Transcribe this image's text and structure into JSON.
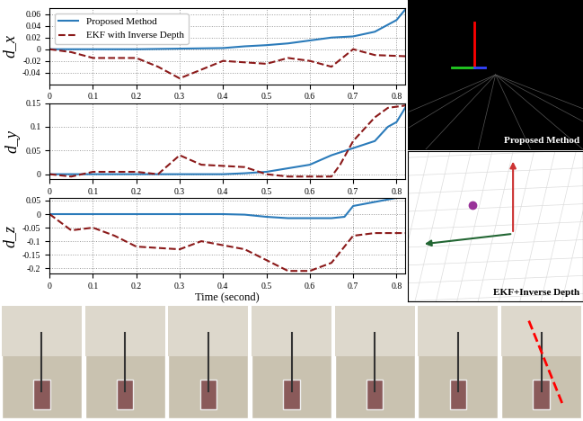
{
  "chart_data": [
    {
      "type": "line",
      "y_label": "d_x",
      "legend": "upper left",
      "grid": true,
      "xlim": [
        0,
        0.82
      ],
      "xticks": [
        0,
        0.1,
        0.2,
        0.3,
        0.4,
        0.5,
        0.6,
        0.7,
        0.8
      ],
      "ylim": [
        -0.06,
        0.07
      ],
      "yticks": [
        -0.04,
        -0.02,
        0,
        0.02,
        0.04,
        0.06
      ],
      "series": [
        {
          "name": "Proposed Method",
          "color": "#2b7bba",
          "line_style": "solid",
          "x": [
            0,
            0.1,
            0.2,
            0.3,
            0.4,
            0.45,
            0.5,
            0.55,
            0.6,
            0.65,
            0.7,
            0.75,
            0.8,
            0.82
          ],
          "values": [
            0,
            0,
            0,
            0.001,
            0.002,
            0.005,
            0.007,
            0.01,
            0.015,
            0.02,
            0.022,
            0.03,
            0.05,
            0.068
          ]
        },
        {
          "name": "EKF with Inverse Depth",
          "color": "#8b1a1a",
          "line_style": "dashed",
          "x": [
            0,
            0.05,
            0.1,
            0.2,
            0.25,
            0.3,
            0.35,
            0.4,
            0.5,
            0.55,
            0.6,
            0.65,
            0.7,
            0.75,
            0.82
          ],
          "values": [
            0,
            -0.005,
            -0.015,
            -0.015,
            -0.03,
            -0.05,
            -0.035,
            -0.02,
            -0.025,
            -0.015,
            -0.02,
            -0.03,
            0,
            -0.01,
            -0.012
          ]
        }
      ]
    },
    {
      "type": "line",
      "y_label": "d_y",
      "grid": true,
      "xlim": [
        0,
        0.82
      ],
      "xticks": [
        0,
        0.1,
        0.2,
        0.3,
        0.4,
        0.5,
        0.6,
        0.7,
        0.8
      ],
      "ylim": [
        -0.01,
        0.15
      ],
      "yticks": [
        0,
        0.05,
        0.1,
        0.15
      ],
      "series": [
        {
          "name": "Proposed Method",
          "color": "#2b7bba",
          "line_style": "solid",
          "x": [
            0,
            0.1,
            0.2,
            0.3,
            0.4,
            0.45,
            0.5,
            0.6,
            0.65,
            0.7,
            0.75,
            0.78,
            0.8,
            0.82
          ],
          "values": [
            0,
            0,
            0,
            0,
            0,
            0.002,
            0.005,
            0.02,
            0.04,
            0.055,
            0.07,
            0.1,
            0.11,
            0.14
          ]
        },
        {
          "name": "EKF with Inverse Depth",
          "color": "#8b1a1a",
          "line_style": "dashed",
          "x": [
            0,
            0.05,
            0.1,
            0.2,
            0.25,
            0.3,
            0.35,
            0.45,
            0.5,
            0.55,
            0.65,
            0.67,
            0.7,
            0.75,
            0.78,
            0.82
          ],
          "values": [
            0,
            -0.005,
            0.005,
            0.005,
            0,
            0.04,
            0.02,
            0.015,
            0,
            -0.005,
            -0.005,
            0.02,
            0.07,
            0.12,
            0.14,
            0.145
          ]
        }
      ]
    },
    {
      "type": "line",
      "y_label": "d_z",
      "x_label": "Time (second)",
      "grid": true,
      "xlim": [
        0,
        0.82
      ],
      "xticks": [
        0,
        0.1,
        0.2,
        0.3,
        0.4,
        0.5,
        0.6,
        0.7,
        0.8
      ],
      "ylim": [
        -0.22,
        0.06
      ],
      "yticks": [
        -0.2,
        -0.15,
        -0.1,
        -0.05,
        0,
        0.05
      ],
      "series": [
        {
          "name": "Proposed Method",
          "color": "#2b7bba",
          "line_style": "solid",
          "x": [
            0,
            0.1,
            0.2,
            0.3,
            0.4,
            0.45,
            0.5,
            0.55,
            0.65,
            0.68,
            0.7,
            0.75,
            0.8,
            0.82
          ],
          "values": [
            0,
            0,
            0,
            0,
            0,
            -0.002,
            -0.01,
            -0.015,
            -0.015,
            -0.01,
            0.03,
            0.045,
            0.06,
            0.06
          ]
        },
        {
          "name": "EKF with Inverse Depth",
          "color": "#8b1a1a",
          "line_style": "dashed",
          "x": [
            0,
            0.05,
            0.1,
            0.15,
            0.2,
            0.3,
            0.35,
            0.45,
            0.55,
            0.6,
            0.65,
            0.7,
            0.75,
            0.82
          ],
          "values": [
            0,
            -0.06,
            -0.05,
            -0.08,
            -0.12,
            -0.13,
            -0.1,
            -0.13,
            -0.21,
            -0.21,
            -0.18,
            -0.08,
            -0.07,
            -0.07
          ]
        }
      ]
    }
  ],
  "panels": [
    {
      "label": "Proposed Method"
    },
    {
      "label": "EKF+Inverse Depth"
    }
  ]
}
